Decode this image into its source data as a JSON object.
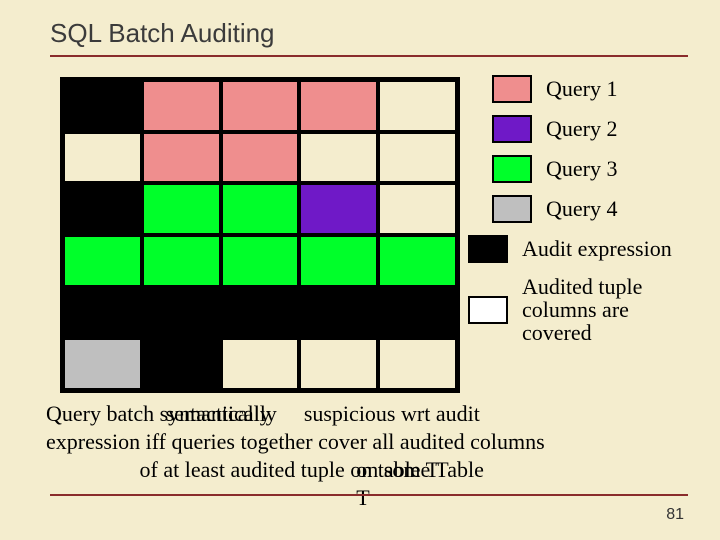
{
  "title": "SQL Batch Auditing",
  "page_number": "81",
  "grid": {
    "rows": 6,
    "cols": 5,
    "border_color": "#000000",
    "background": "#f4edce",
    "cells": [
      [
        "#000000",
        "#ef8e8e",
        "#ef8e8e",
        "#ef8e8e",
        "#f4edce"
      ],
      [
        "#f4edce",
        "#ef8e8e",
        "#ef8e8e",
        "#f4edce",
        "#f4edce"
      ],
      [
        "#000000",
        "#00ff2a",
        "#00ff2a",
        "#6f19c7",
        "#f4edce"
      ],
      [
        "#00ff2a",
        "#00ff2a",
        "#00ff2a",
        "#00ff2a",
        "#00ff2a"
      ],
      [
        "#000000",
        "#000000",
        "#000000",
        "#000000",
        "#000000"
      ],
      [
        "#bfbfbf",
        "#000000",
        "#f4edce",
        "#f4edce",
        "#f4edce"
      ]
    ]
  },
  "legend": {
    "items": [
      {
        "color": "#ef8e8e",
        "label": "Query 1"
      },
      {
        "color": "#6f19c7",
        "label": "Query 2"
      },
      {
        "color": "#00ff2a",
        "label": "Query 3"
      },
      {
        "color": "#bfbfbf",
        "label": "Query 4"
      },
      {
        "color": "#000000",
        "label": "Audit expression"
      },
      {
        "color": "#ffffff",
        "label": "Audited tuple columns are covered"
      }
    ]
  },
  "caption": {
    "prefix": "Query batch ",
    "overlap_a": "syntactically",
    "overlap_b": "semantically",
    "mid1": " suspicious wrt audit",
    "line2a": "expression iff queries together cover all audited columns",
    "line3a": "of at least audited tuple ",
    "tail_a": "on table T",
    "tail_b": "on some Table T"
  },
  "style": {
    "slide_bg": "#f4edce",
    "rule_color": "#8a2c2c",
    "title_font": "Verdana",
    "title_size_pt": 20,
    "body_font": "Times New Roman",
    "body_size_pt": 17
  }
}
